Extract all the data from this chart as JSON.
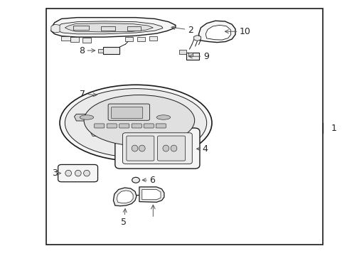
{
  "background_color": "#ffffff",
  "line_color": "#1a1a1a",
  "fig_width": 4.89,
  "fig_height": 3.6,
  "dpi": 100,
  "border": [
    0.13,
    0.04,
    0.8,
    0.93
  ],
  "label_fontsize": 9,
  "label_color": "#222222",
  "arrow_color": "#555555",
  "part_fill": "#f5f5f5",
  "part_fill2": "#ebebeb",
  "part_fill3": "#e0e0e0"
}
